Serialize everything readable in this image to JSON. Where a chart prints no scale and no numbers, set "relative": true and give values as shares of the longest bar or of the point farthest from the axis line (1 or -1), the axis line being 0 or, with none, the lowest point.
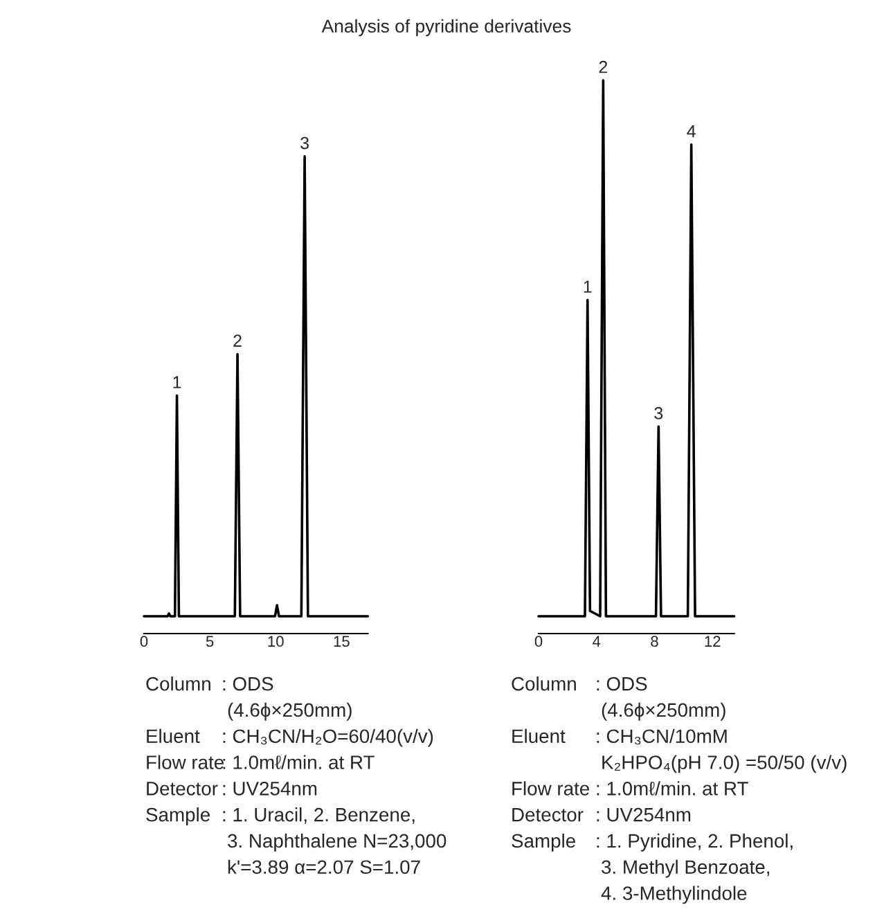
{
  "chart_data": [
    {
      "type": "line",
      "title": "Analysis of pyridine derivatives",
      "relative": true,
      "grid": false,
      "legend": false,
      "xlim": [
        0,
        17
      ],
      "xticks": [
        0,
        5,
        10,
        15
      ],
      "series": [
        {
          "color": "#000000",
          "x": [
            0,
            1.8,
            1.9,
            2.0,
            2.35,
            2.5,
            2.65,
            6.9,
            7.1,
            7.3,
            9.95,
            10.1,
            10.25,
            11.95,
            12.2,
            12.45,
            17
          ],
          "values": [
            0,
            0,
            0.006,
            0,
            0,
            0.48,
            0,
            0,
            0.57,
            0,
            0,
            0.024,
            0,
            0,
            1,
            0,
            0
          ]
        }
      ],
      "annotations": [
        {
          "text": "1",
          "x": 2.5,
          "y": 0.48
        },
        {
          "text": "2",
          "x": 7.1,
          "y": 0.57
        },
        {
          "text": "3",
          "x": 12.2,
          "y": 1
        },
        "Column : ODS",
        "(4.6ϕ×250mm)",
        "Eluent : CH₃CN/H₂O=60/40(v/v)",
        "Flow rate : 1.0mℓ/min. at RT",
        "Detector : UV254nm",
        "Sample : 1. Uracil, 2. Benzene,",
        "3. Naphthalene N=23,000",
        "k'=3.89 α=2.07 S=1.07"
      ]
    },
    {
      "type": "line",
      "relative": true,
      "grid": false,
      "legend": false,
      "xlim": [
        0,
        13.5
      ],
      "xticks": [
        0,
        4,
        8,
        12
      ],
      "series": [
        {
          "color": "#000000",
          "x": [
            0,
            3.2,
            3.38,
            3.55,
            4.25,
            4.46,
            4.65,
            8.1,
            8.28,
            8.45,
            10.3,
            10.54,
            10.8,
            13.5
          ],
          "values": [
            0,
            0,
            0.59,
            0.01,
            0,
            1,
            0,
            0,
            0.354,
            0,
            0,
            0.88,
            0,
            0
          ]
        }
      ],
      "annotations": [
        {
          "text": "1",
          "x": 3.38,
          "y": 0.59
        },
        {
          "text": "2",
          "x": 4.46,
          "y": 1
        },
        {
          "text": "3",
          "x": 8.28,
          "y": 0.354
        },
        {
          "text": "4",
          "x": 10.54,
          "y": 0.88
        },
        "Column : ODS",
        "(4.6ϕ×250mm)",
        "Eluent : CH₃CN/10mM",
        "K₂HPO₄(pH 7.0) =50/50 (v/v)",
        "Flow rate : 1.0mℓ/min. at RT",
        "Detector : UV254nm",
        "Sample : 1. Pyridine, 2. Phenol,",
        "3. Methyl Benzoate,",
        "4. 3-Methylindole"
      ]
    }
  ]
}
